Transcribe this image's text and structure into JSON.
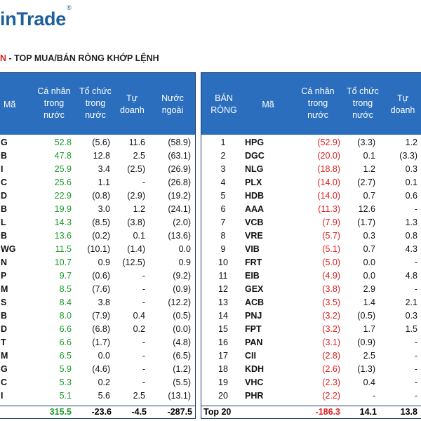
{
  "logo": {
    "text": "inTrade",
    "reg": "®"
  },
  "title": {
    "prefix": "N",
    "main": " - TOP MUA/BÁN RÒNG KHỚP LỆNH"
  },
  "left_table": {
    "headers": {
      "code": "Mã",
      "individual": "Cá nhân trong nước",
      "institution": "Tổ chức trong nước",
      "proprietary": "Tự doanh",
      "foreign": "Nước ngoài"
    },
    "rows": [
      {
        "code": "G",
        "individual": "52.8",
        "institution": "(5.6)",
        "proprietary": "11.6",
        "foreign": "(58.9)"
      },
      {
        "code": "B",
        "individual": "47.8",
        "institution": "12.8",
        "proprietary": "2.5",
        "foreign": "(63.1)"
      },
      {
        "code": "I",
        "individual": "25.9",
        "institution": "3.4",
        "proprietary": "(2.5)",
        "foreign": "(26.9)"
      },
      {
        "code": "C",
        "individual": "25.6",
        "institution": "1.1",
        "proprietary": "-",
        "foreign": "(26.8)"
      },
      {
        "code": "D",
        "individual": "22.9",
        "institution": "(0.8)",
        "proprietary": "(2.9)",
        "foreign": "(19.2)"
      },
      {
        "code": "B",
        "individual": "19.9",
        "institution": "3.0",
        "proprietary": "1.2",
        "foreign": "(24.1)"
      },
      {
        "code": "L",
        "individual": "14.3",
        "institution": "(8.5)",
        "proprietary": "(3.8)",
        "foreign": "(2.0)"
      },
      {
        "code": "B",
        "individual": "13.6",
        "institution": "(0.2)",
        "proprietary": "0.1",
        "foreign": "(13.6)"
      },
      {
        "code": "WG",
        "individual": "11.5",
        "institution": "(10.1)",
        "proprietary": "(1.4)",
        "foreign": "0.0"
      },
      {
        "code": "N",
        "individual": "10.7",
        "institution": "0.9",
        "proprietary": "(12.5)",
        "foreign": "0.9"
      },
      {
        "code": "P",
        "individual": "9.7",
        "institution": "(0.6)",
        "proprietary": "-",
        "foreign": "(9.2)"
      },
      {
        "code": "M",
        "individual": "8.5",
        "institution": "(7.6)",
        "proprietary": "-",
        "foreign": "(0.9)"
      },
      {
        "code": "S",
        "individual": "8.4",
        "institution": "3.8",
        "proprietary": "-",
        "foreign": "(12.2)"
      },
      {
        "code": "B",
        "individual": "8.0",
        "institution": "(7.9)",
        "proprietary": "0.4",
        "foreign": "(0.5)"
      },
      {
        "code": "D",
        "individual": "6.6",
        "institution": "(6.8)",
        "proprietary": "0.2",
        "foreign": "(0.0)"
      },
      {
        "code": "T",
        "individual": "6.6",
        "institution": "(1.7)",
        "proprietary": "-",
        "foreign": "(4.8)"
      },
      {
        "code": "M",
        "individual": "6.5",
        "institution": "0.0",
        "proprietary": "-",
        "foreign": "(6.5)"
      },
      {
        "code": "G",
        "individual": "5.9",
        "institution": "(4.6)",
        "proprietary": "-",
        "foreign": "(1.2)"
      },
      {
        "code": "C",
        "individual": "5.3",
        "institution": "0.2",
        "proprietary": "-",
        "foreign": "(5.5)"
      },
      {
        "code": "I",
        "individual": "5.1",
        "institution": "5.6",
        "proprietary": "2.5",
        "foreign": "(13.1)"
      }
    ],
    "total": {
      "individual": "315.5",
      "institution": "-23.6",
      "proprietary": "-4.5",
      "foreign": "-287.5"
    }
  },
  "right_table": {
    "headers": {
      "rank": "BÁN RÒNG",
      "code": "Mã",
      "individual": "Cá nhân trong nước",
      "institution": "Tổ chức trong nước",
      "proprietary": "Tự doanh"
    },
    "rows": [
      {
        "rank": "1",
        "code": "HPG",
        "individual": "(52.9)",
        "institution": "(3.3)",
        "proprietary": "1.2"
      },
      {
        "rank": "2",
        "code": "DGC",
        "individual": "(20.0)",
        "institution": "0.1",
        "proprietary": "(3.3)"
      },
      {
        "rank": "3",
        "code": "NLG",
        "individual": "(18.8)",
        "institution": "1.2",
        "proprietary": "0.3"
      },
      {
        "rank": "4",
        "code": "PLX",
        "individual": "(14.0)",
        "institution": "(2.7)",
        "proprietary": "0.1"
      },
      {
        "rank": "5",
        "code": "HDB",
        "individual": "(14.0)",
        "institution": "0.7",
        "proprietary": "0.6"
      },
      {
        "rank": "6",
        "code": "AAA",
        "individual": "(11.3)",
        "institution": "12.6",
        "proprietary": "-"
      },
      {
        "rank": "7",
        "code": "VCB",
        "individual": "(7.9)",
        "institution": "(1.7)",
        "proprietary": "1.3"
      },
      {
        "rank": "8",
        "code": "VRE",
        "individual": "(5.7)",
        "institution": "0.3",
        "proprietary": "0.8"
      },
      {
        "rank": "9",
        "code": "VIB",
        "individual": "(5.1)",
        "institution": "0.7",
        "proprietary": "4.3"
      },
      {
        "rank": "10",
        "code": "FRT",
        "individual": "(5.0)",
        "institution": "0.0",
        "proprietary": "-"
      },
      {
        "rank": "11",
        "code": "EIB",
        "individual": "(4.9)",
        "institution": "0.0",
        "proprietary": "4.8"
      },
      {
        "rank": "12",
        "code": "GEX",
        "individual": "(3.8)",
        "institution": "2.9",
        "proprietary": "-"
      },
      {
        "rank": "13",
        "code": "ACB",
        "individual": "(3.5)",
        "institution": "1.4",
        "proprietary": "2.1"
      },
      {
        "rank": "14",
        "code": "PNJ",
        "individual": "(3.2)",
        "institution": "(0.5)",
        "proprietary": "0.3"
      },
      {
        "rank": "15",
        "code": "FPT",
        "individual": "(3.2)",
        "institution": "1.7",
        "proprietary": "1.5"
      },
      {
        "rank": "16",
        "code": "PAN",
        "individual": "(3.1)",
        "institution": "(0.9)",
        "proprietary": "-"
      },
      {
        "rank": "17",
        "code": "CII",
        "individual": "(2.8)",
        "institution": "2.5",
        "proprietary": "-"
      },
      {
        "rank": "18",
        "code": "KDH",
        "individual": "(2.6)",
        "institution": "(1.3)",
        "proprietary": "-"
      },
      {
        "rank": "19",
        "code": "VHC",
        "individual": "(2.3)",
        "institution": "0.4",
        "proprietary": "-"
      },
      {
        "rank": "20",
        "code": "PHR",
        "individual": "(2.2)",
        "institution": "-",
        "proprietary": "-"
      }
    ],
    "total": {
      "label": "Top 20",
      "individual": "-186.3",
      "institution": "14.1",
      "proprietary": "13.8"
    }
  },
  "colors": {
    "header_bg": "#2a6ebd",
    "buy": "#1c9a2a",
    "sell": "#e02020",
    "logo": "#1f5f9a"
  }
}
